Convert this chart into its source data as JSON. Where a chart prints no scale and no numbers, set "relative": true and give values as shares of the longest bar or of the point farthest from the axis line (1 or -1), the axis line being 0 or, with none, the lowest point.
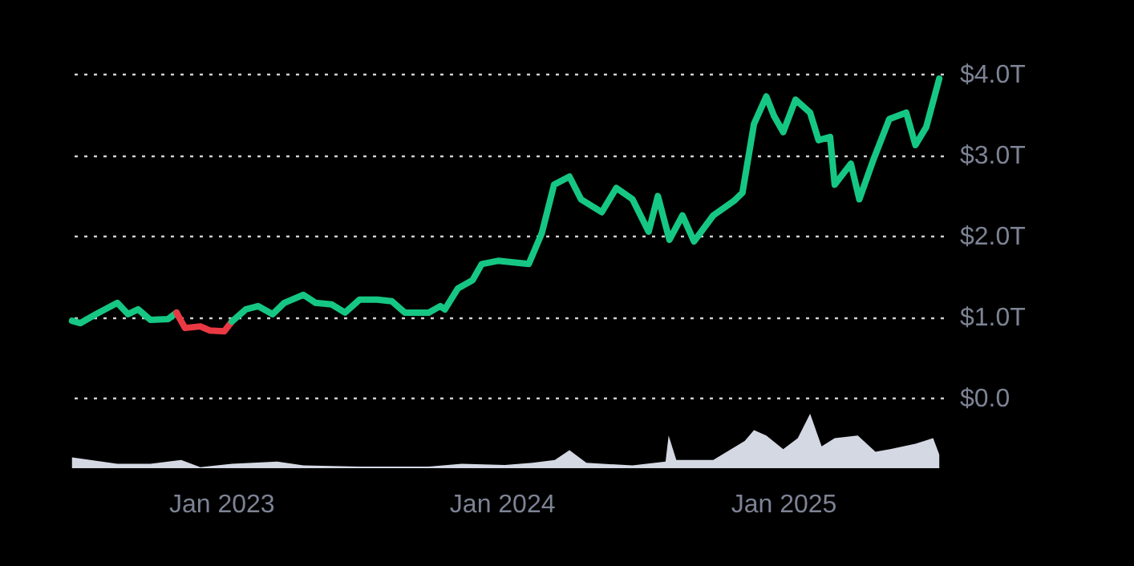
{
  "chart_data": [
    {
      "type": "line",
      "tick_labels": "y",
      "grid": "y",
      "line_style": "solid",
      "xlim": [
        "2022-06-15",
        "2025-07-28"
      ],
      "ylim": [
        0,
        4
      ],
      "yticks": [
        {
          "value": 0,
          "label": "$0.0"
        },
        {
          "value": 1,
          "label": "$1.0T"
        },
        {
          "value": 2,
          "label": "$2.0T"
        },
        {
          "value": 3,
          "label": "$3.0T"
        },
        {
          "value": 4,
          "label": "$4.0T"
        }
      ],
      "series": [
        {
          "color": "#16c784",
          "x": [
            "2022-06-21",
            "2022-07-02",
            "2022-07-22",
            "2022-08-19",
            "2022-09-02",
            "2022-09-15",
            "2022-10-01",
            "2022-10-24",
            "2022-11-04"
          ],
          "values": [
            0.95,
            0.92,
            1.03,
            1.17,
            1.03,
            1.09,
            0.96,
            0.97,
            1.05
          ]
        },
        {
          "color": "#ea3943",
          "x": [
            "2022-11-04",
            "2022-11-15",
            "2022-12-05",
            "2022-12-17",
            "2023-01-05",
            "2023-01-15"
          ],
          "values": [
            1.05,
            0.86,
            0.88,
            0.83,
            0.82,
            0.94
          ]
        },
        {
          "color": "#16c784",
          "x": [
            "2023-01-15",
            "2023-02-02",
            "2023-02-18",
            "2023-03-09",
            "2023-03-24",
            "2023-04-18",
            "2023-05-04",
            "2023-05-25",
            "2023-06-11",
            "2023-06-30",
            "2023-07-23",
            "2023-08-11",
            "2023-08-28",
            "2023-09-28",
            "2023-10-13",
            "2023-10-19",
            "2023-11-05",
            "2023-11-24",
            "2023-12-06",
            "2023-12-27",
            "2024-02-05",
            "2024-02-22",
            "2024-03-09",
            "2024-03-29",
            "2024-04-13",
            "2024-05-10",
            "2024-05-29",
            "2024-06-19",
            "2024-07-10",
            "2024-07-22",
            "2024-08-06",
            "2024-08-23",
            "2024-09-07",
            "2024-10-02",
            "2024-10-29",
            "2024-11-09",
            "2024-11-24",
            "2024-12-10",
            "2024-12-20",
            "2025-01-01",
            "2025-01-17",
            "2025-02-05",
            "2025-02-16",
            "2025-03-03",
            "2025-03-09",
            "2025-03-30",
            "2025-04-10",
            "2025-04-28",
            "2025-05-19",
            "2025-06-10",
            "2025-06-22",
            "2025-07-06",
            "2025-07-23"
          ],
          "values": [
            0.94,
            1.09,
            1.13,
            1.03,
            1.17,
            1.27,
            1.17,
            1.15,
            1.05,
            1.21,
            1.21,
            1.19,
            1.05,
            1.05,
            1.13,
            1.09,
            1.35,
            1.45,
            1.65,
            1.69,
            1.65,
            2.03,
            2.63,
            2.73,
            2.45,
            2.29,
            2.59,
            2.45,
            2.05,
            2.49,
            1.95,
            2.25,
            1.93,
            2.25,
            2.43,
            2.53,
            3.38,
            3.72,
            3.48,
            3.28,
            3.68,
            3.52,
            3.18,
            3.22,
            2.63,
            2.89,
            2.45,
            2.93,
            3.44,
            3.52,
            3.12,
            3.34,
            3.94
          ]
        }
      ]
    },
    {
      "type": "area",
      "relative": true,
      "tick_labels": "x",
      "xlim": [
        "2022-06-15",
        "2025-07-28"
      ],
      "xticks": [
        {
          "value": "2023-01-01",
          "label": "Jan 2023"
        },
        {
          "value": "2024-01-01",
          "label": "Jan 2024"
        },
        {
          "value": "2025-01-01",
          "label": "Jan 2025"
        }
      ],
      "x": [
        "2022-06-21",
        "2022-08-19",
        "2022-10-01",
        "2022-11-10",
        "2022-12-05",
        "2023-01-15",
        "2023-03-15",
        "2023-04-18",
        "2023-06-30",
        "2023-09-28",
        "2023-11-10",
        "2024-01-05",
        "2024-02-10",
        "2024-03-10",
        "2024-03-29",
        "2024-04-20",
        "2024-06-19",
        "2024-08-01",
        "2024-08-05",
        "2024-08-15",
        "2024-10-02",
        "2024-11-12",
        "2024-11-24",
        "2024-12-10",
        "2025-01-01",
        "2025-01-20",
        "2025-02-05",
        "2025-02-20",
        "2025-03-09",
        "2025-04-08",
        "2025-05-01",
        "2025-05-20",
        "2025-06-22",
        "2025-07-15",
        "2025-07-23"
      ],
      "series": [
        {
          "color": "#d4d8e3",
          "values": [
            0.2,
            0.08,
            0.08,
            0.15,
            0.02,
            0.08,
            0.12,
            0.05,
            0.03,
            0.03,
            0.08,
            0.06,
            0.1,
            0.15,
            0.33,
            0.1,
            0.05,
            0.12,
            0.6,
            0.15,
            0.15,
            0.5,
            0.7,
            0.6,
            0.35,
            0.55,
            1.0,
            0.4,
            0.55,
            0.6,
            0.3,
            0.35,
            0.45,
            0.55,
            0.25
          ]
        }
      ]
    }
  ]
}
